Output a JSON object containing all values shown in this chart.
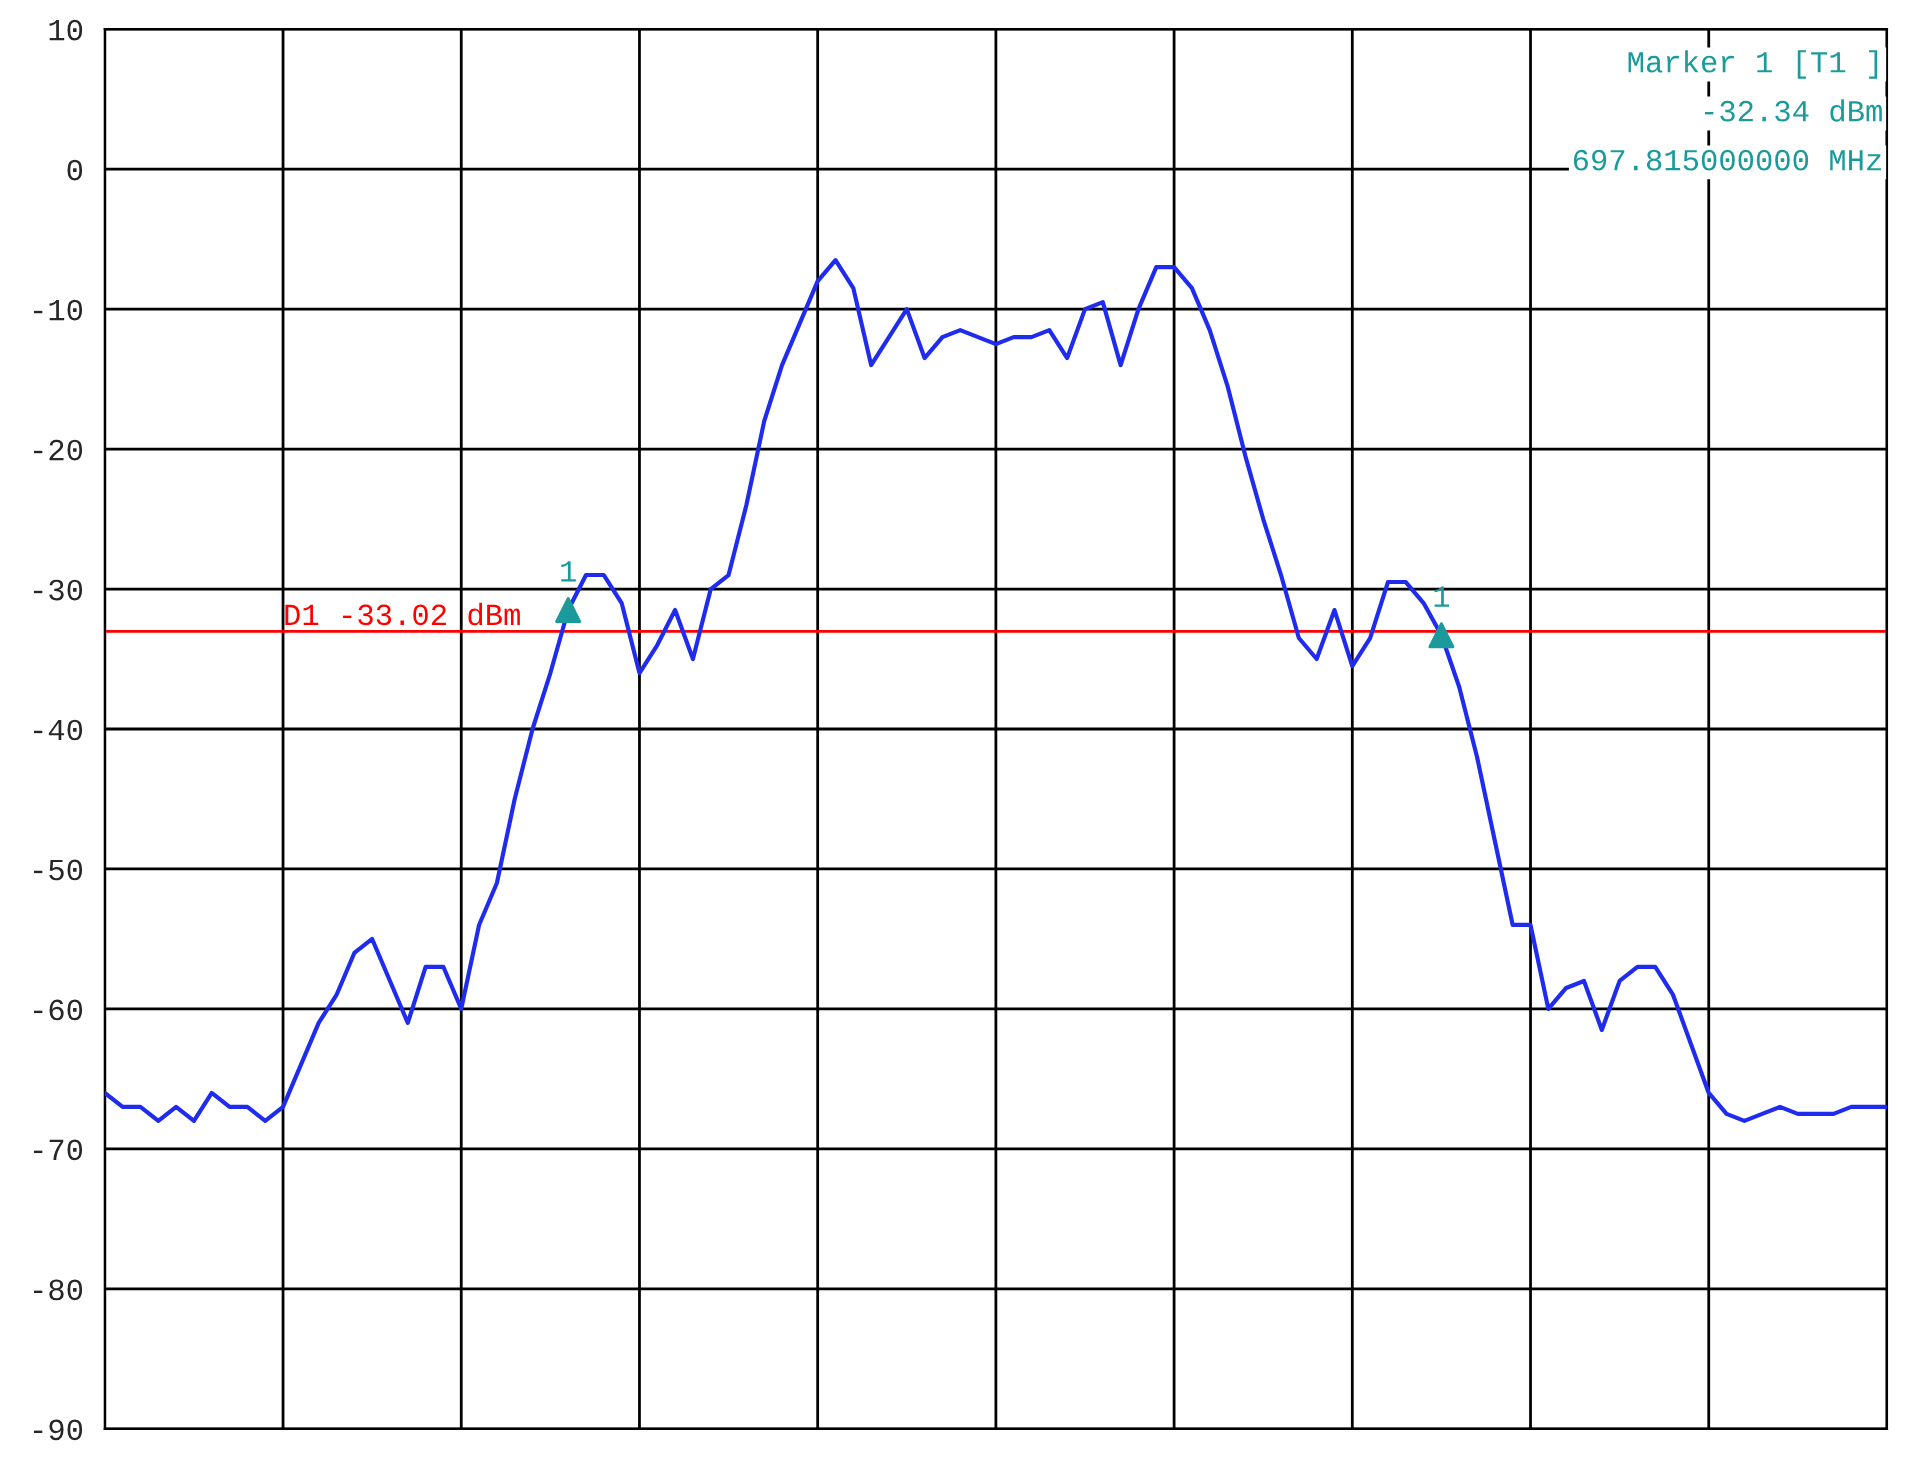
{
  "chart_data": {
    "type": "line",
    "categories": [
      null,
      null,
      null,
      null,
      null,
      null,
      null,
      null,
      null,
      null,
      null,
      null,
      null,
      null,
      null,
      null,
      null,
      null,
      null,
      null,
      null,
      null,
      null,
      null,
      null,
      null,
      null,
      null,
      null,
      null,
      null,
      null,
      null,
      null,
      null,
      null,
      null,
      null,
      null,
      null,
      null,
      null,
      null,
      null,
      null,
      null,
      null,
      null,
      null,
      null,
      null,
      null,
      null,
      null,
      null,
      null,
      null,
      null,
      null,
      null,
      null,
      null,
      null,
      null,
      null,
      null,
      null,
      null,
      null,
      null,
      null,
      null,
      null,
      null,
      null,
      null,
      null,
      null,
      null,
      null,
      null,
      null,
      null,
      null,
      null,
      null,
      null,
      null,
      null,
      null,
      null,
      null,
      null,
      null,
      null,
      null,
      null,
      null,
      null,
      null,
      null
    ],
    "series": [
      {
        "color": "#1f2cf0",
        "values": [
          -66,
          -67,
          -67,
          -68,
          -67,
          -68,
          -66,
          -67,
          -67,
          -68,
          -67,
          -64,
          -61,
          -59,
          -56,
          -55,
          -58,
          -61,
          -57,
          -57,
          -60,
          -54,
          -51,
          -45,
          -40,
          -36,
          -31.5,
          -29,
          -29,
          -31,
          -36,
          -34,
          -31.5,
          -35,
          -30,
          -29,
          -24,
          -18,
          -14,
          -11,
          -8,
          -6.5,
          -8.5,
          -14,
          -12,
          -10,
          -13.5,
          -12,
          -11.5,
          -12,
          -12.5,
          -12,
          -12,
          -11.5,
          -13.5,
          -10,
          -9.5,
          -14,
          -10,
          -7,
          -7,
          -8.5,
          -11.5,
          -15.5,
          -20.5,
          -25,
          -29,
          -33.5,
          -35,
          -31.5,
          -35.5,
          -33.5,
          -29.5,
          -29.5,
          -31,
          -33.3,
          -37,
          -42,
          -48,
          -54,
          -54,
          -60,
          -58.5,
          -58,
          -61.5,
          -58,
          -57,
          -57,
          -59,
          -62.5,
          -66,
          -67.5,
          -68,
          -67.5,
          -67,
          -67.5,
          -67.5,
          -67.5,
          -67,
          -67,
          -67
        ]
      },
      {
        "type": "scatter",
        "name": "1",
        "color": "#1a9a9a",
        "marker": "triangle",
        "values": [
          null,
          null,
          null,
          null,
          null,
          null,
          null,
          null,
          null,
          null,
          null,
          null,
          null,
          null,
          null,
          null,
          null,
          null,
          null,
          null,
          null,
          null,
          null,
          null,
          null,
          null,
          -31.5,
          null,
          null,
          null,
          null,
          null,
          null,
          null,
          null,
          null,
          null,
          null,
          null,
          null,
          null,
          null,
          null,
          null,
          null,
          null,
          null,
          null,
          null,
          null,
          null,
          null,
          null,
          null,
          null,
          null,
          null,
          null,
          null,
          null,
          null,
          null,
          null,
          null,
          null,
          null,
          null,
          null,
          null,
          null,
          null,
          null,
          null,
          null,
          null,
          -33.3,
          null,
          null,
          null,
          null,
          null,
          null,
          null,
          null,
          null,
          null,
          null,
          null,
          null,
          null,
          null,
          null,
          null,
          null,
          null,
          null,
          null,
          null,
          null,
          null,
          null
        ]
      }
    ],
    "ylim": [
      -90,
      10
    ],
    "yticks": [
      -90,
      -80,
      -70,
      -60,
      -50,
      -40,
      -30,
      -20,
      -10,
      0,
      10
    ],
    "grid": true,
    "tick_labels": "y",
    "ref_lines": [
      {
        "axis": "y",
        "value": -33.02,
        "label": "D1 -33.02 dBm",
        "color": "#ff0000"
      }
    ],
    "annotations": [
      "Marker 1 [T1 ]",
      "-32.34 dBm",
      "697.815000000 MHz"
    ]
  }
}
